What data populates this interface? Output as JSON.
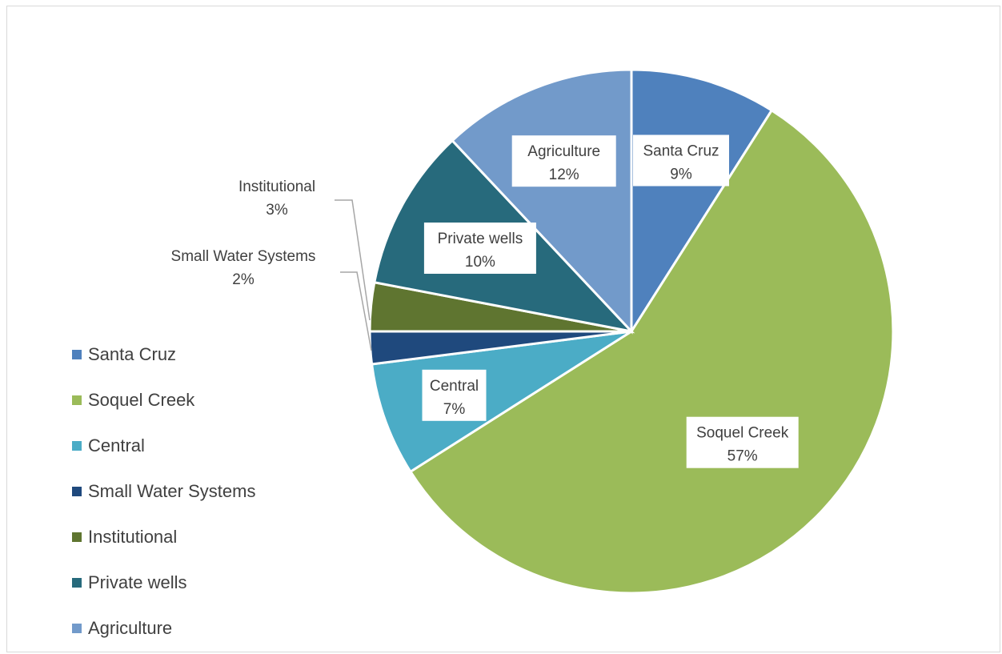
{
  "chart_data": {
    "type": "pie",
    "title": "",
    "legend_position": "left",
    "slices": [
      {
        "name": "Santa Cruz",
        "value": 9,
        "label": "9%",
        "color": "#4F81BD"
      },
      {
        "name": "Soquel Creek",
        "value": 57,
        "label": "57%",
        "color": "#9BBB59"
      },
      {
        "name": "Central",
        "value": 7,
        "label": "7%",
        "color": "#4BACC6"
      },
      {
        "name": "Small Water Systems",
        "value": 2,
        "label": "2%",
        "color": "#1F497D"
      },
      {
        "name": "Institutional",
        "value": 3,
        "label": "3%",
        "color": "#5F7530"
      },
      {
        "name": "Private wells",
        "value": 10,
        "label": "10%",
        "color": "#276A7C"
      },
      {
        "name": "Agriculture",
        "value": 12,
        "label": "12%",
        "color": "#729ACA"
      }
    ]
  }
}
